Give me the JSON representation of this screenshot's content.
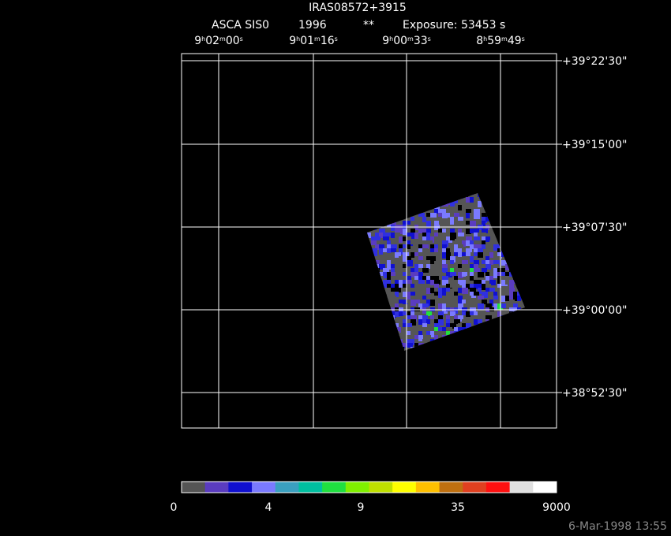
{
  "header": {
    "title": "IRAS08572+3915",
    "instrument": "ASCA SIS0",
    "year": "1996",
    "flag": "**",
    "exposure": "Exposure: 53453 s"
  },
  "ra_labels": [
    [
      "9",
      "h",
      "02",
      "m",
      "00",
      "s"
    ],
    [
      "9",
      "h",
      "01",
      "m",
      "16",
      "s"
    ],
    [
      "9",
      "h",
      "00",
      "m",
      "33",
      "s"
    ],
    [
      "8",
      "h",
      "59",
      "m",
      "49",
      "s"
    ]
  ],
  "dec_labels": [
    "+39°22'30\"",
    "+39°15'00\"",
    "+39°07'30\"",
    "+39°00'00\"",
    "+38°52'30\""
  ],
  "colorbar": {
    "colors": [
      "#555555",
      "#5a3cc0",
      "#1010d0",
      "#7a7aff",
      "#3aa0c0",
      "#00c0a0",
      "#20e040",
      "#80f000",
      "#c0e000",
      "#ffff00",
      "#ffc000",
      "#c07010",
      "#e04020",
      "#ff1010",
      "#e0e0e0",
      "#ffffff"
    ],
    "labels": [
      "0",
      "4",
      "9",
      "35",
      "9000"
    ]
  },
  "timestamp": "6-Mar-1998 13:55"
}
